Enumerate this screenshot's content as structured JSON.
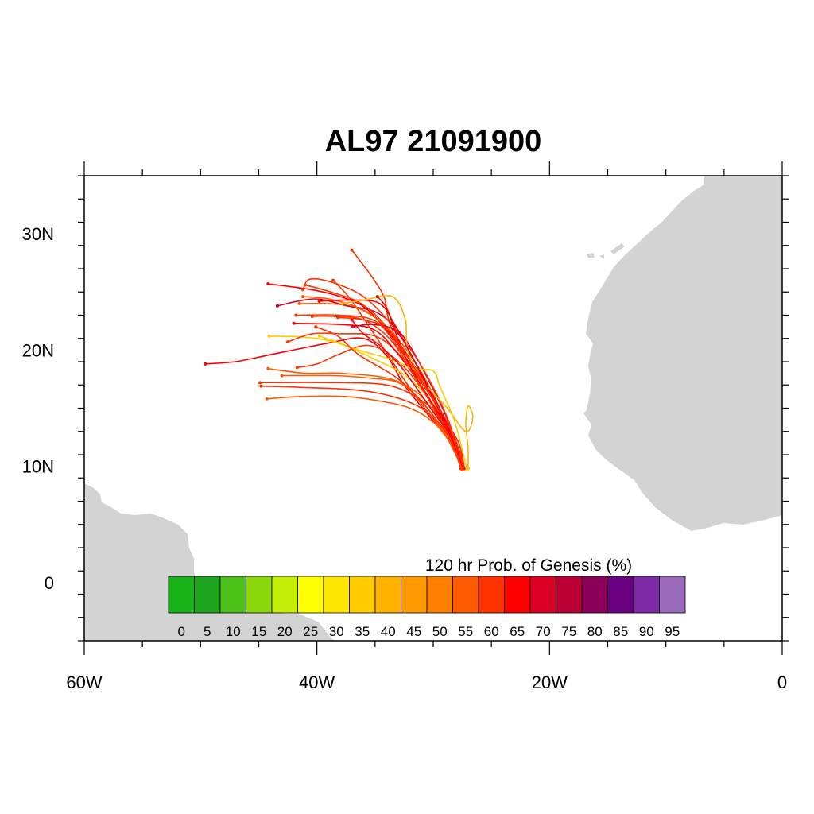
{
  "title": "AL97 21091900",
  "map": {
    "lon_range": [
      -60,
      0
    ],
    "lat_range": [
      -5,
      35
    ],
    "x_ticks": [
      {
        "value": -60,
        "label": "60W"
      },
      {
        "value": -40,
        "label": "40W"
      },
      {
        "value": -20,
        "label": "20W"
      },
      {
        "value": 0,
        "label": "0"
      }
    ],
    "y_ticks": [
      {
        "value": 0,
        "label": "0"
      },
      {
        "value": 10,
        "label": "10N"
      },
      {
        "value": 20,
        "label": "20N"
      },
      {
        "value": 30,
        "label": "30N"
      }
    ],
    "land_color": "#d3d3d3",
    "frame_color": "#000000"
  },
  "colorbar": {
    "title": "120 hr Prob. of Genesis (%)",
    "labels": [
      "0",
      "5",
      "10",
      "15",
      "20",
      "25",
      "30",
      "35",
      "40",
      "45",
      "50",
      "55",
      "60",
      "65",
      "70",
      "75",
      "80",
      "85",
      "90",
      "95"
    ],
    "colors": [
      "#17b217",
      "#20a520",
      "#4cc11a",
      "#8ad80c",
      "#c3ef08",
      "#ffff00",
      "#ffe600",
      "#ffcc00",
      "#ffb300",
      "#ff9900",
      "#ff7f00",
      "#ff5a00",
      "#ff3300",
      "#ff0000",
      "#dd0026",
      "#bb0035",
      "#8c005a",
      "#6a0082",
      "#7d2aa6",
      "#9b6abb"
    ]
  },
  "tracks_origin": {
    "lon": -27.5,
    "lat": 9.8
  },
  "tracks": [
    {
      "color": "#ff3300",
      "points": [
        [
          -27.4,
          9.8
        ],
        [
          -27.8,
          11.5
        ],
        [
          -29.5,
          13.5
        ],
        [
          -31.5,
          16
        ],
        [
          -33.5,
          19
        ],
        [
          -35.5,
          22
        ],
        [
          -37.2,
          24.5
        ],
        [
          -38.6,
          26
        ]
      ]
    },
    {
      "color": "#ff3300",
      "points": [
        [
          -27.3,
          9.8
        ],
        [
          -27.8,
          12
        ],
        [
          -29,
          14
        ],
        [
          -30.5,
          16.5
        ],
        [
          -32.5,
          19.5
        ],
        [
          -33.8,
          22.5
        ],
        [
          -34.2,
          24.5
        ],
        [
          -35.2,
          26.2
        ],
        [
          -37,
          28.6
        ]
      ]
    },
    {
      "color": "#ff0000",
      "points": [
        [
          -27.6,
          9.8
        ],
        [
          -28.5,
          12
        ],
        [
          -30.5,
          14.5
        ],
        [
          -32.5,
          17
        ],
        [
          -34,
          19.5
        ],
        [
          -36,
          21
        ],
        [
          -39,
          20.6
        ],
        [
          -44,
          19.6
        ],
        [
          -47,
          19
        ],
        [
          -49.6,
          18.8
        ]
      ]
    },
    {
      "color": "#ff5a00",
      "points": [
        [
          -27.5,
          9.9
        ],
        [
          -28.5,
          12
        ],
        [
          -30,
          13.8
        ],
        [
          -32,
          15
        ],
        [
          -34.5,
          15.6
        ],
        [
          -37.5,
          16
        ],
        [
          -41.5,
          16
        ],
        [
          -44.3,
          15.8
        ]
      ]
    },
    {
      "color": "#ff3300",
      "points": [
        [
          -27.5,
          9.8
        ],
        [
          -28.3,
          12.2
        ],
        [
          -29.8,
          14
        ],
        [
          -32,
          15.5
        ],
        [
          -36,
          16.5
        ],
        [
          -41.5,
          16.8
        ],
        [
          -44.8,
          16.9
        ]
      ]
    },
    {
      "color": "#ff3300",
      "points": [
        [
          -27.4,
          9.9
        ],
        [
          -28.2,
          12.6
        ],
        [
          -29.6,
          14.4
        ],
        [
          -31.2,
          15.8
        ],
        [
          -34,
          17
        ],
        [
          -39,
          17.2
        ],
        [
          -44.9,
          17.2
        ]
      ]
    },
    {
      "color": "#ff5a00",
      "points": [
        [
          -27.5,
          9.8
        ],
        [
          -28.4,
          12.4
        ],
        [
          -30,
          14.8
        ],
        [
          -31.6,
          16.5
        ],
        [
          -34,
          17.6
        ],
        [
          -38,
          18
        ],
        [
          -41,
          18
        ],
        [
          -44.2,
          18.4
        ]
      ]
    },
    {
      "color": "#ffcc00",
      "points": [
        [
          -27.5,
          9.8
        ],
        [
          -28.6,
          12.8
        ],
        [
          -30.2,
          15.6
        ],
        [
          -32.4,
          17.8
        ],
        [
          -35,
          19.2
        ],
        [
          -38.2,
          20.6
        ],
        [
          -41,
          21.1
        ],
        [
          -44.1,
          21.2
        ]
      ]
    },
    {
      "color": "#ff3300",
      "points": [
        [
          -27.5,
          9.8
        ],
        [
          -28.8,
          13
        ],
        [
          -30.8,
          16.4
        ],
        [
          -33.2,
          19.2
        ],
        [
          -35.6,
          20.4
        ],
        [
          -38.2,
          19.6
        ],
        [
          -40,
          18.8
        ],
        [
          -41.7,
          18.5
        ]
      ]
    },
    {
      "color": "#ff3300",
      "points": [
        [
          -27.4,
          9.9
        ],
        [
          -28.6,
          13.2
        ],
        [
          -30.6,
          16.6
        ],
        [
          -32.8,
          19.5
        ],
        [
          -35,
          21.2
        ],
        [
          -38,
          21.4
        ],
        [
          -40.4,
          21.4
        ],
        [
          -42.5,
          20.7
        ]
      ]
    },
    {
      "color": "#ff0000",
      "points": [
        [
          -27.5,
          9.8
        ],
        [
          -28.9,
          13
        ],
        [
          -31,
          16.8
        ],
        [
          -33.3,
          20
        ],
        [
          -35.2,
          21.8
        ],
        [
          -38,
          22.2
        ],
        [
          -42,
          22.3
        ]
      ]
    },
    {
      "color": "#ff3300",
      "points": [
        [
          -27.3,
          9.8
        ],
        [
          -28.7,
          13.4
        ],
        [
          -30.9,
          17.2
        ],
        [
          -33,
          20.2
        ],
        [
          -35,
          22.5
        ],
        [
          -38,
          23
        ],
        [
          -41.8,
          23
        ]
      ]
    },
    {
      "color": "#ff5a00",
      "points": [
        [
          -27.5,
          9.7
        ],
        [
          -28.8,
          13.6
        ],
        [
          -31,
          17.6
        ],
        [
          -33.2,
          20.8
        ],
        [
          -35.2,
          23
        ],
        [
          -37.8,
          23.9
        ],
        [
          -41.5,
          24
        ]
      ]
    },
    {
      "color": "#dd0026",
      "points": [
        [
          -27.5,
          9.8
        ],
        [
          -28.6,
          13.6
        ],
        [
          -30.6,
          17.8
        ],
        [
          -32.6,
          21.2
        ],
        [
          -34.8,
          23.2
        ],
        [
          -37.4,
          23.8
        ],
        [
          -40.2,
          24.4
        ],
        [
          -43.4,
          23.8
        ]
      ]
    },
    {
      "color": "#ff0000",
      "points": [
        [
          -27.5,
          9.8
        ],
        [
          -29,
          13.8
        ],
        [
          -31.2,
          18
        ],
        [
          -33.6,
          21.2
        ],
        [
          -35.8,
          23.6
        ],
        [
          -38,
          24.6
        ],
        [
          -40.5,
          25.2
        ],
        [
          -44.2,
          25.7
        ]
      ]
    },
    {
      "color": "#ff3300",
      "points": [
        [
          -27.6,
          9.8
        ],
        [
          -29.2,
          14
        ],
        [
          -31.6,
          18.6
        ],
        [
          -34,
          22
        ],
        [
          -36.2,
          24
        ],
        [
          -38.8,
          25
        ],
        [
          -41,
          25.6
        ]
      ]
    },
    {
      "color": "#ff3300",
      "points": [
        [
          -27.4,
          9.9
        ],
        [
          -28.8,
          14.2
        ],
        [
          -31,
          18.6
        ],
        [
          -33.6,
          22.2
        ],
        [
          -36,
          24.6
        ],
        [
          -38.6,
          25.8
        ],
        [
          -40.6,
          26.1
        ],
        [
          -41.2,
          25.2
        ]
      ]
    },
    {
      "color": "#ff5a00",
      "points": [
        [
          -27.5,
          9.8
        ],
        [
          -29,
          14
        ],
        [
          -31.2,
          18.4
        ],
        [
          -33.8,
          21.8
        ],
        [
          -36.4,
          23.6
        ],
        [
          -39,
          24.4
        ],
        [
          -41.2,
          24.6
        ]
      ]
    },
    {
      "color": "#ff0000",
      "points": [
        [
          -27.5,
          9.8
        ],
        [
          -28.6,
          13.2
        ],
        [
          -30.4,
          16.8
        ],
        [
          -32,
          19.8
        ],
        [
          -33.2,
          22
        ],
        [
          -34.6,
          24
        ],
        [
          -37,
          24.3
        ],
        [
          -39.8,
          24.2
        ]
      ]
    },
    {
      "color": "#ff3300",
      "points": [
        [
          -27.5,
          9.8
        ],
        [
          -29.2,
          13.6
        ],
        [
          -31.4,
          17.4
        ],
        [
          -33.6,
          20.8
        ],
        [
          -36,
          22.6
        ],
        [
          -38.6,
          22.9
        ],
        [
          -40.4,
          22.9
        ]
      ]
    },
    {
      "color": "#ffb300",
      "points": [
        [
          -27.0,
          9.8
        ],
        [
          -27,
          11.6
        ],
        [
          -27.2,
          13.6
        ],
        [
          -27,
          15.2
        ],
        [
          -26.6,
          14.2
        ],
        [
          -27.2,
          13
        ],
        [
          -28.8,
          15
        ],
        [
          -31,
          17.5
        ],
        [
          -32.2,
          20
        ],
        [
          -32.4,
          22.6
        ],
        [
          -33.5,
          24.6
        ],
        [
          -36,
          24.3
        ],
        [
          -37.8,
          24
        ]
      ]
    },
    {
      "color": "#ffcc00",
      "points": [
        [
          -27.1,
          9.8
        ],
        [
          -27.6,
          11.8
        ],
        [
          -28.2,
          14
        ],
        [
          -29.4,
          16.8
        ],
        [
          -30,
          18.2
        ],
        [
          -31.8,
          18.4
        ],
        [
          -33.6,
          19.2
        ],
        [
          -36.4,
          20
        ],
        [
          -38.6,
          20.8
        ],
        [
          -39.8,
          21.2
        ]
      ]
    },
    {
      "color": "#ff0000",
      "points": [
        [
          -27.5,
          9.8
        ],
        [
          -28.4,
          12.6
        ],
        [
          -30.2,
          15.6
        ],
        [
          -32,
          18.6
        ],
        [
          -33.2,
          21.4
        ],
        [
          -34,
          23.6
        ],
        [
          -34.8,
          24.6
        ]
      ]
    },
    {
      "color": "#dd0026",
      "points": [
        [
          -27.5,
          9.8
        ],
        [
          -28.4,
          12.8
        ],
        [
          -30,
          15.8
        ],
        [
          -31.6,
          19
        ],
        [
          -33.2,
          21.6
        ],
        [
          -35.2,
          22.2
        ],
        [
          -36.9,
          22
        ]
      ]
    },
    {
      "color": "#ff3300",
      "points": [
        [
          -27.6,
          9.8
        ],
        [
          -28.6,
          13.4
        ],
        [
          -30.4,
          16.4
        ],
        [
          -32.2,
          19.4
        ],
        [
          -34,
          21.8
        ],
        [
          -36,
          22.6
        ],
        [
          -38.2,
          22.8
        ]
      ]
    },
    {
      "color": "#ff5a00",
      "points": [
        [
          -27.5,
          9.8
        ],
        [
          -29,
          12.8
        ],
        [
          -31,
          15.6
        ],
        [
          -33,
          17.2
        ],
        [
          -35.6,
          17.6
        ],
        [
          -38.6,
          17.8
        ],
        [
          -43,
          17.8
        ]
      ]
    },
    {
      "color": "#ff0000",
      "points": [
        [
          -27.4,
          9.8
        ],
        [
          -28,
          11.2
        ],
        [
          -28.6,
          12.8
        ],
        [
          -29.8,
          14.4
        ],
        [
          -31.2,
          16.4
        ],
        [
          -32.8,
          18.6
        ],
        [
          -34.6,
          20.4
        ],
        [
          -36,
          21.4
        ],
        [
          -37,
          22.6
        ]
      ]
    },
    {
      "color": "#ff3300",
      "points": [
        [
          -27.5,
          9.8
        ],
        [
          -28.6,
          12.4
        ],
        [
          -30.2,
          14.6
        ],
        [
          -31.8,
          16.4
        ],
        [
          -33.4,
          17.8
        ],
        [
          -36.4,
          19.6
        ],
        [
          -38.2,
          21.2
        ],
        [
          -40.1,
          22
        ]
      ]
    }
  ]
}
